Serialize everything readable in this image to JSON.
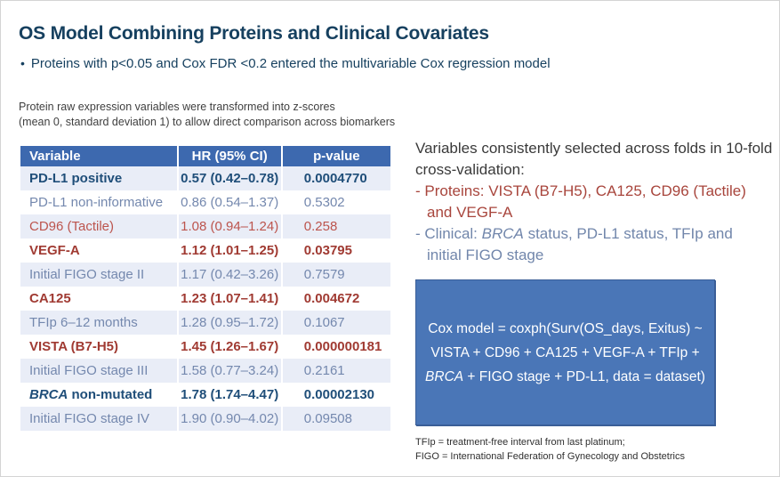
{
  "slide": {
    "title": "OS Model Combining Proteins and Clinical Covariates",
    "bullet_marker": "•",
    "bullet": "Proteins with p<0.05 and Cox FDR <0.2 entered the multivariable Cox regression model",
    "note": "Protein raw expression variables were transformed into z-scores\n(mean 0, standard deviation 1) to allow direct comparison across biomarkers"
  },
  "table": {
    "headers": [
      "Variable",
      "HR (95% CI)",
      "p-value"
    ],
    "rows": [
      {
        "variable": "PD-L1 positive",
        "hr": "0.57 (0.42–0.78)",
        "p": "0.0004770",
        "style": "bold-blue"
      },
      {
        "variable": "PD-L1 non-informative",
        "hr": "0.86 (0.54–1.37)",
        "p": "0.5302",
        "style": "blue"
      },
      {
        "variable": "CD96 (Tactile)",
        "hr": "1.08 (0.94–1.24)",
        "p": "0.258",
        "style": "red"
      },
      {
        "variable": "VEGF-A",
        "hr": "1.12 (1.01–1.25)",
        "p": "0.03795",
        "style": "bold-red"
      },
      {
        "variable": "Initial FIGO stage II",
        "hr": "1.17 (0.42–3.26)",
        "p": "0.7579",
        "style": "blue"
      },
      {
        "variable": "CA125",
        "hr": "1.23 (1.07–1.41)",
        "p": "0.004672",
        "style": "bold-red"
      },
      {
        "variable": "TFIp 6–12 months",
        "hr": "1.28 (0.95–1.72)",
        "p": "0.1067",
        "style": "blue"
      },
      {
        "variable": "VISTA (B7-H5)",
        "hr": "1.45 (1.26–1.67)",
        "p": "0.000000181",
        "style": "bold-red"
      },
      {
        "variable": "Initial FIGO stage III",
        "hr": "1.58 (0.77–3.24)",
        "p": "0.2161",
        "style": "blue"
      },
      {
        "variable_italic": "BRCA",
        "variable": " non-mutated",
        "hr": "1.78 (1.74–4.47)",
        "p": "0.00002130",
        "style": "bold-blue"
      },
      {
        "variable": "Initial FIGO stage IV",
        "hr": "1.90 (0.90–4.02)",
        "p": "0.09508",
        "style": "blue"
      }
    ]
  },
  "right_panel": {
    "heading": "Variables consistently selected across folds in 10-fold\ncross-validation:",
    "proteins_bullet": "- Proteins: VISTA (B7-H5), CA125, CD96 (Tactile)\nand VEGF-A",
    "clinical_prefix": "- Clinical: ",
    "clinical_italic": "BRCA",
    "clinical_rest": " status, PD-L1 status, TFIp and\ninitial FIGO stage"
  },
  "cox_box": {
    "line1": "Cox model = coxph(Surv(OS_days, Exitus) ~",
    "line2": "VISTA + CD96 + CA125 + VEGF-A + TFIp +",
    "line3_italic": "BRCA",
    "line3_rest": " + FIGO stage + PD-L1, data = dataset)"
  },
  "footnote": "TFIp = treatment-free interval from last platinum;\nFIGO = International Federation of Gynecology and Obstetrics",
  "colors": {
    "title_navy": "#16405f",
    "header_blue": "#3d69af",
    "box_blue": "#4a76b7",
    "row_alt_bg": "#e9edf7",
    "bold_blue_text": "#1f4e79",
    "slate_blue_text": "#7488ae",
    "red_text": "#bc544d",
    "bold_red_text": "#a03a32"
  }
}
